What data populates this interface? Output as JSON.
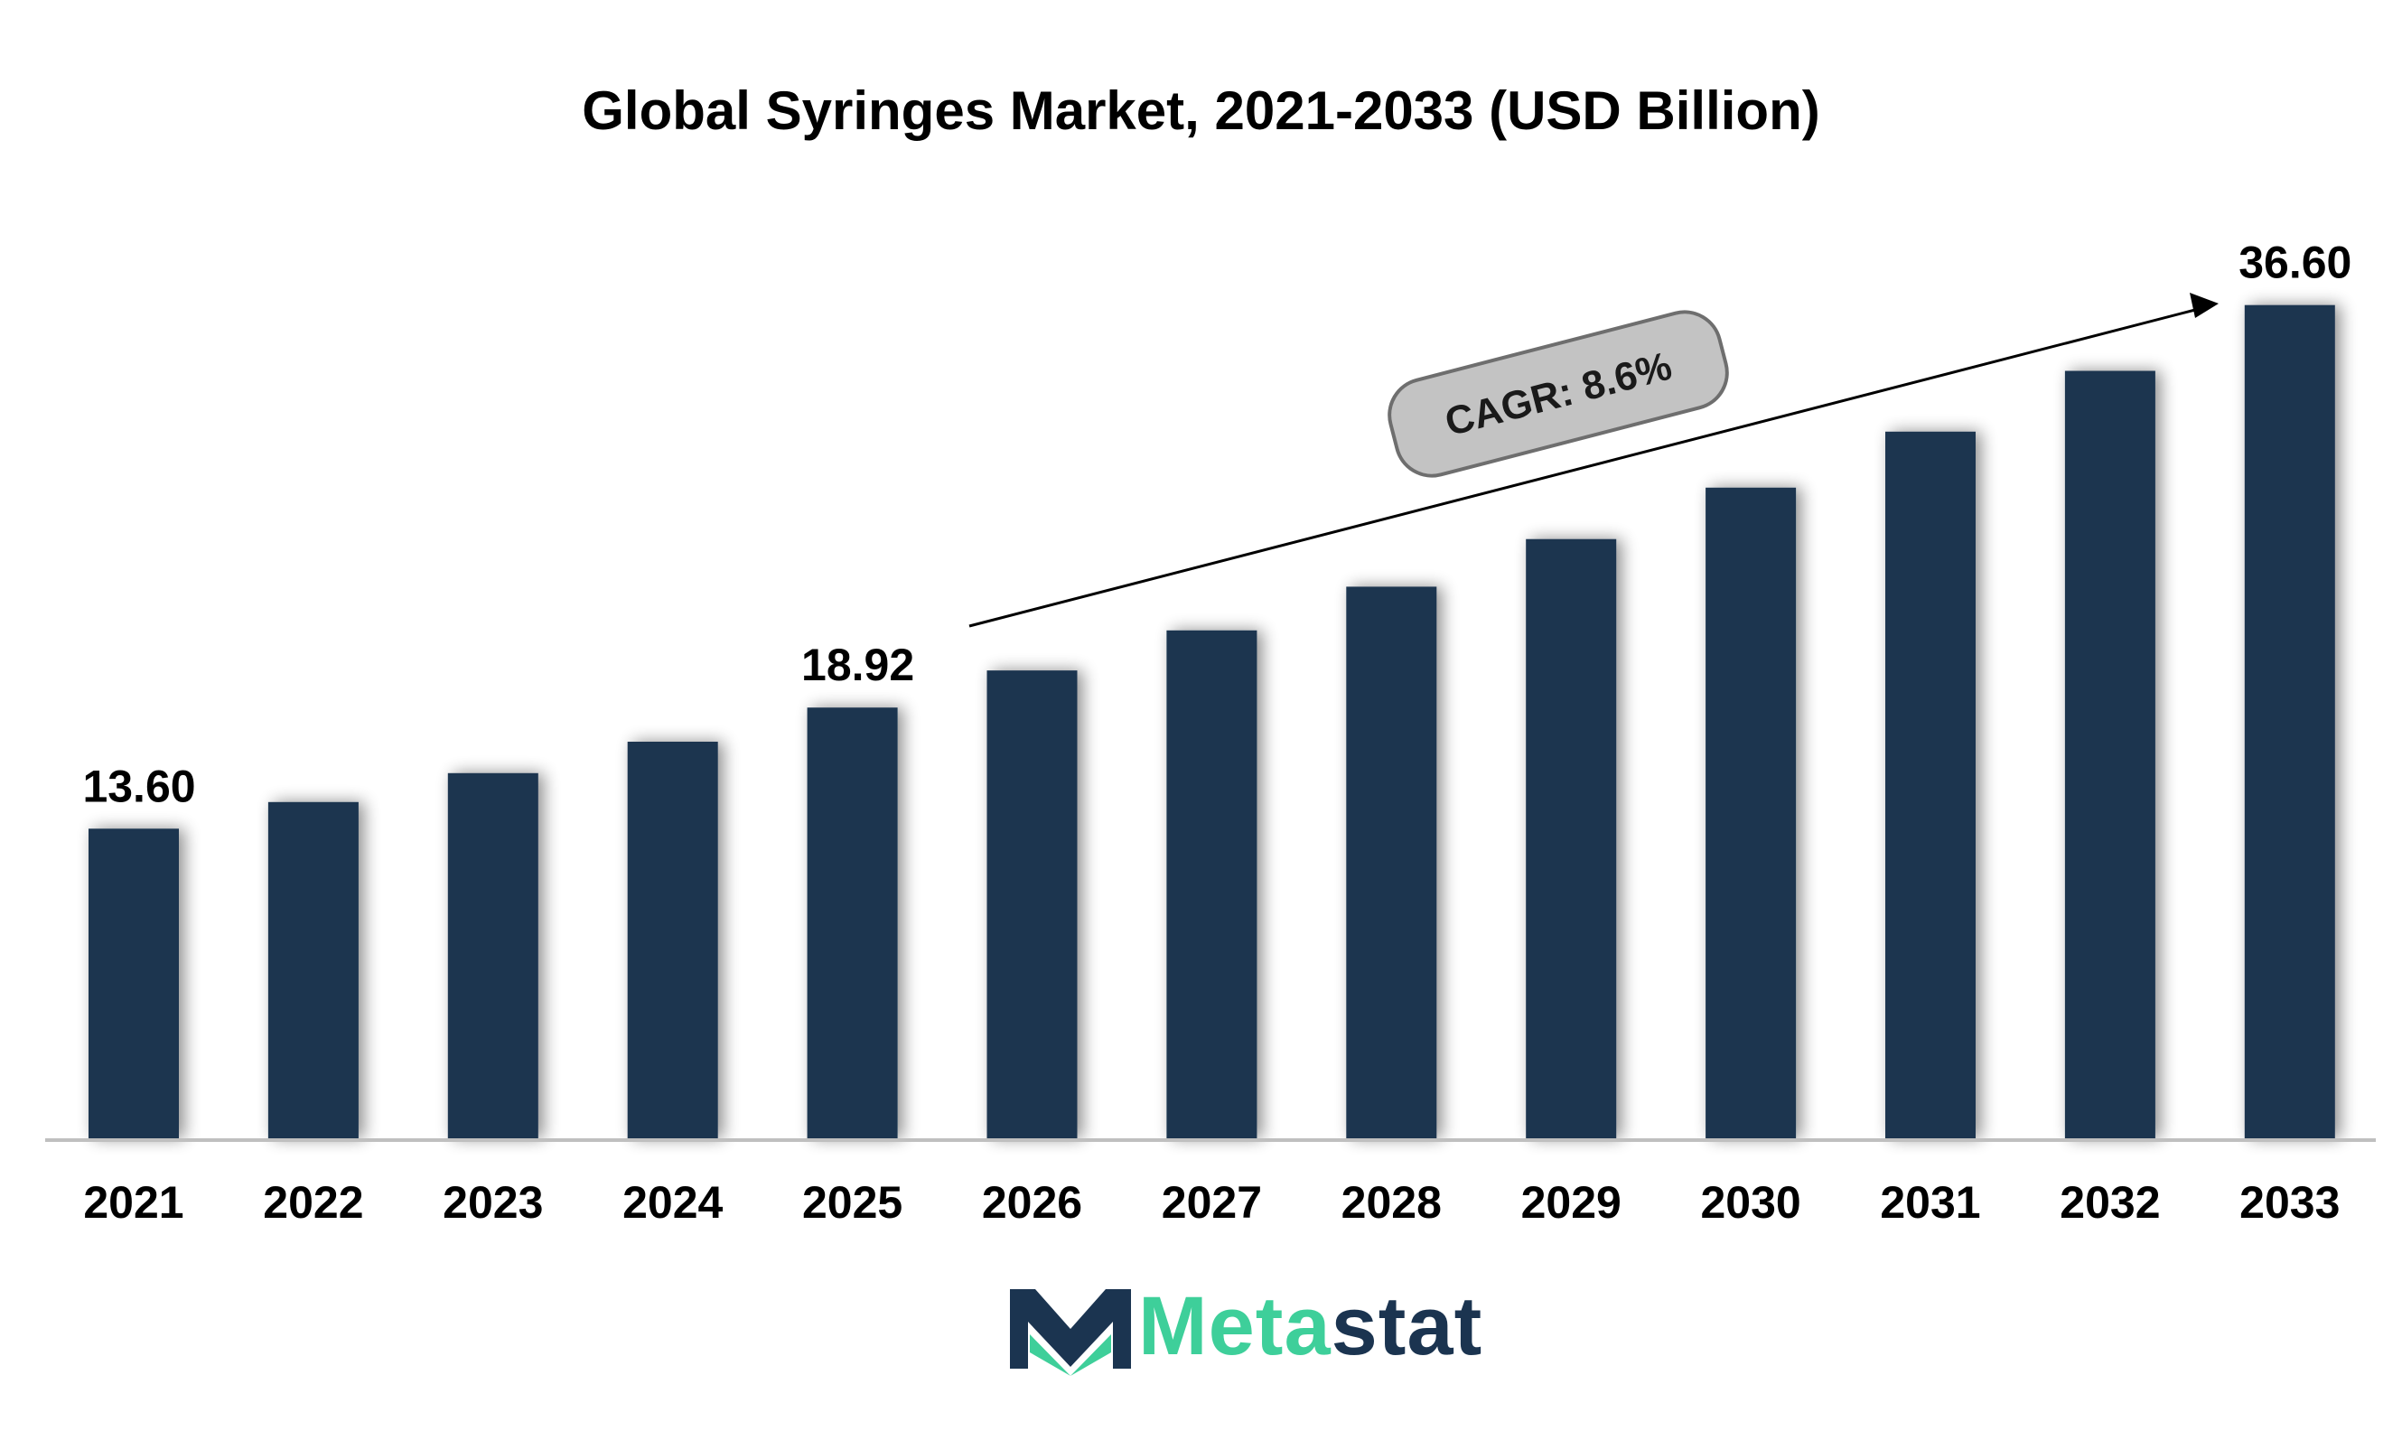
{
  "title": "Global Syringes  Market, 2021-2033 (USD Billion)",
  "chart_data": {
    "type": "bar",
    "title": "Global Syringes  Market, 2021-2033 (USD Billion)",
    "categories": [
      "2021",
      "2022",
      "2023",
      "2024",
      "2025",
      "2026",
      "2027",
      "2028",
      "2029",
      "2030",
      "2031",
      "2032",
      "2033"
    ],
    "values": [
      13.6,
      14.77,
      16.04,
      17.42,
      18.92,
      20.55,
      22.31,
      24.23,
      26.32,
      28.58,
      31.04,
      33.71,
      36.6
    ],
    "data_labels": {
      "0": "13.60",
      "4": "18.92",
      "12": "36.60"
    },
    "ylim": [
      0,
      40
    ],
    "grid": false,
    "legend": "none",
    "annotation": "CAGR: 8.6%"
  },
  "colors": {
    "bar": "#1b3450",
    "axis": "#bfbfbf",
    "annotation_fill": "#c3c3c3",
    "annotation_stroke": "#6e6e6e",
    "logo_green": "#3ecf9a",
    "logo_navy": "#1b3450"
  },
  "logo": {
    "text_part1": "Meta",
    "text_part2": "stat",
    "icon": "metastat-m-icon"
  }
}
